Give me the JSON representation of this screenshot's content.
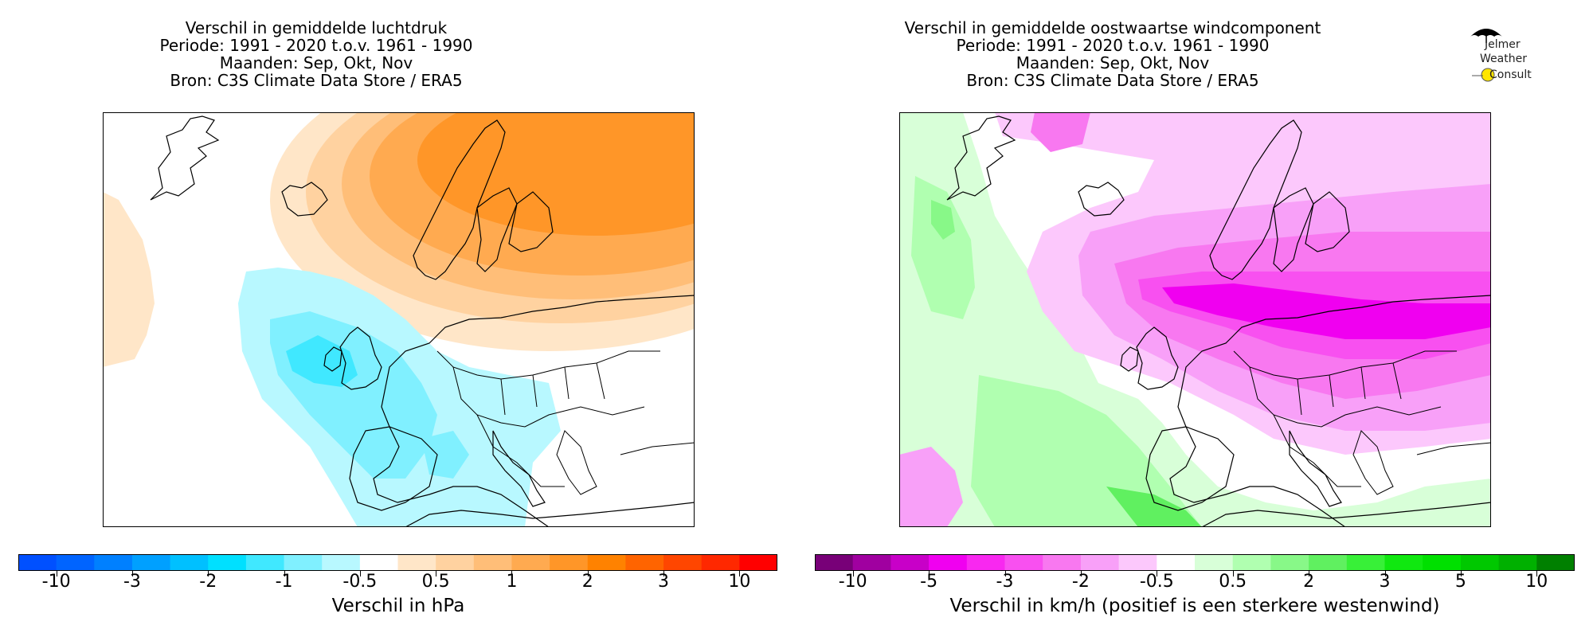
{
  "left_panel": {
    "title_lines": [
      "Verschil in gemiddelde luchtdruk",
      "Periode: 1991 - 2020 t.o.v. 1961 - 1990",
      "Maanden: Sep, Okt, Nov",
      "Bron: C3S Climate Data Store / ERA5"
    ],
    "colorbar_label": "Verschil in hPa",
    "tick_labels": [
      "-10",
      "-3",
      "-2",
      "-1",
      "-0.5",
      "0.5",
      "1",
      "2",
      "3",
      "10"
    ],
    "colors": [
      "#0050ff",
      "#0064ff",
      "#0080ff",
      "#00a0ff",
      "#00c0ff",
      "#00e0ff",
      "#40e8ff",
      "#80f0ff",
      "#b8f8ff",
      "#ffffff",
      "#ffe6c8",
      "#ffd2a0",
      "#ffbe78",
      "#ffaa50",
      "#ff9628",
      "#ff8200",
      "#ff6400",
      "#ff4600",
      "#ff2800",
      "#ff0000"
    ]
  },
  "right_panel": {
    "title_lines": [
      "Verschil in gemiddelde oostwaartse windcomponent",
      "Periode: 1991 - 2020 t.o.v. 1961 - 1990",
      "Maanden: Sep, Okt, Nov",
      "Bron: C3S Climate Data Store / ERA5"
    ],
    "colorbar_label": "Verschil in km/h (positief is een sterkere westenwind)",
    "tick_labels": [
      "-10",
      "-5",
      "-3",
      "-2",
      "-0.5",
      "0.5",
      "2",
      "3",
      "5",
      "10"
    ],
    "colors": [
      "#780078",
      "#a000a0",
      "#c800c8",
      "#f000f0",
      "#f828f0",
      "#f850f0",
      "#f878f0",
      "#f8a0f8",
      "#fcc8fc",
      "#ffffff",
      "#d8ffd8",
      "#b0ffb0",
      "#88f888",
      "#60f060",
      "#38f038",
      "#10e810",
      "#00e000",
      "#00c800",
      "#00b000",
      "#008000"
    ]
  },
  "logo": {
    "line1": "Jelmer",
    "line2": "Weather",
    "line3": "Consult"
  }
}
